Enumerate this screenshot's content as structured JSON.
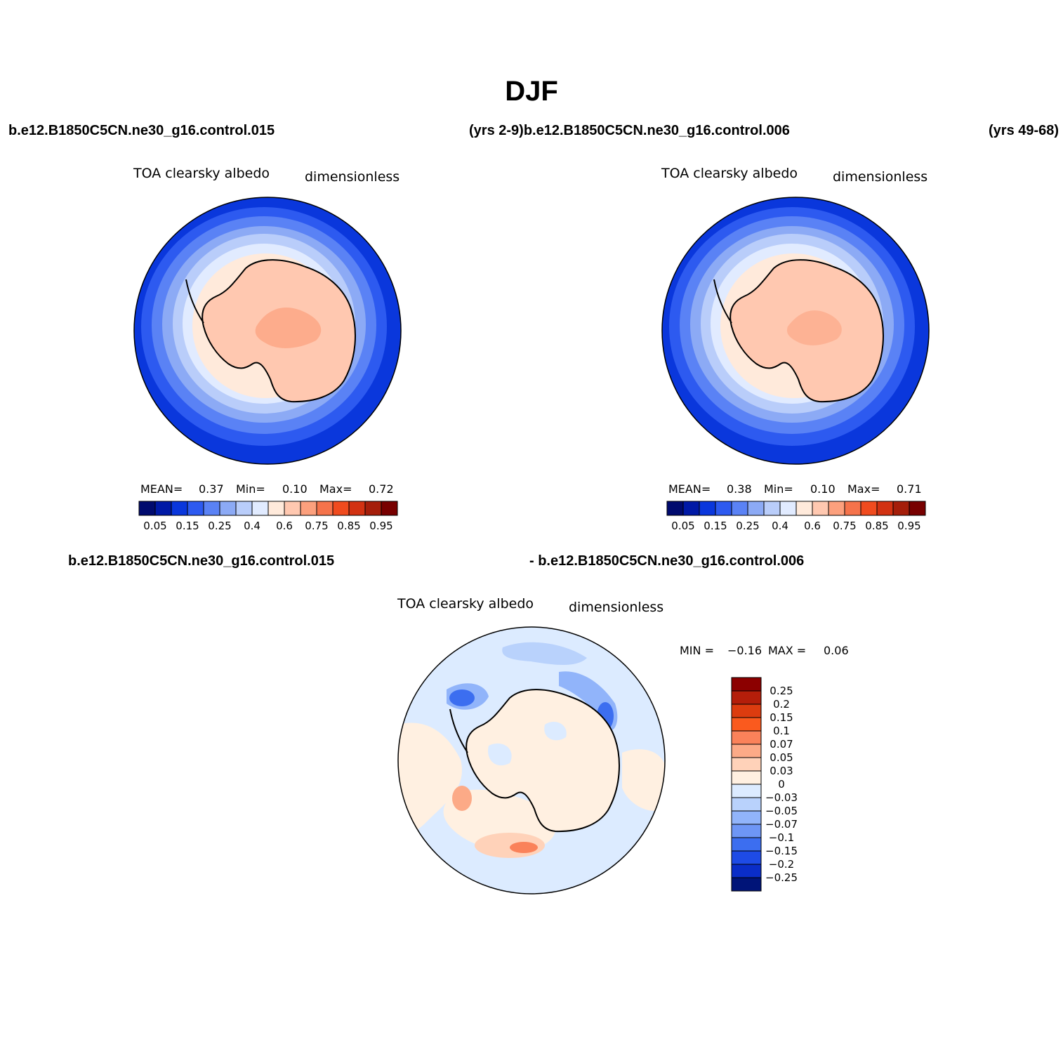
{
  "title": "DJF",
  "header": {
    "case_left": "b.e12.B1850C5CN.ne30_g16.control.015",
    "years_mid_case": "(yrs 2-9)b.e12.B1850C5CN.ne30_g16.control.006",
    "years_right": "(yrs 49-68)"
  },
  "panels": [
    {
      "variable": "TOA clearsky albedo",
      "units": "dimensionless",
      "stats": {
        "mean_label": "MEAN=",
        "mean": "0.37",
        "min_label": "Min=",
        "min": "0.10",
        "max_label": "Max=",
        "max": "0.72"
      }
    },
    {
      "variable": "TOA clearsky albedo",
      "units": "dimensionless",
      "stats": {
        "mean_label": "MEAN=",
        "mean": "0.38",
        "min_label": "Min=",
        "min": "0.10",
        "max_label": "Max=",
        "max": "0.71"
      }
    }
  ],
  "abs_colorbar": {
    "colors": [
      "#000a6e",
      "#0019a6",
      "#0a37dc",
      "#2d5af0",
      "#5a82f5",
      "#8caaf5",
      "#b9cdfa",
      "#e1ebff",
      "#ffeadb",
      "#ffc8b0",
      "#fca07d",
      "#f5734b",
      "#f04b1e",
      "#d23212",
      "#a51e0a",
      "#780000"
    ],
    "labels": [
      "0.05",
      "0.15",
      "0.25",
      "0.4",
      "0.6",
      "0.75",
      "0.85",
      "0.95"
    ]
  },
  "diff": {
    "case_a": "b.e12.B1850C5CN.ne30_g16.control.015",
    "case_b": "- b.e12.B1850C5CN.ne30_g16.control.006",
    "variable": "TOA clearsky albedo",
    "units": "dimensionless",
    "stats": {
      "min_label": "MIN =",
      "min": "−0.16",
      "max_label": "MAX =",
      "max": "0.06"
    },
    "colorbar": {
      "colors_top_to_bottom": [
        "#8c0000",
        "#b41e0a",
        "#dc3c0f",
        "#fa5a1e",
        "#fa825a",
        "#fcaa87",
        "#ffd2b9",
        "#fff0e1",
        "#dcebff",
        "#b9d2fc",
        "#91b4fa",
        "#6e96f5",
        "#3c6ef0",
        "#1e4be6",
        "#0a2dc8",
        "#001478"
      ],
      "labels_top_to_bottom": [
        "0.25",
        "0.2",
        "0.15",
        "0.1",
        "0.07",
        "0.05",
        "0.03",
        "0",
        "−0.03",
        "−0.05",
        "−0.07",
        "−0.1",
        "−0.15",
        "−0.2",
        "−0.25"
      ]
    }
  }
}
